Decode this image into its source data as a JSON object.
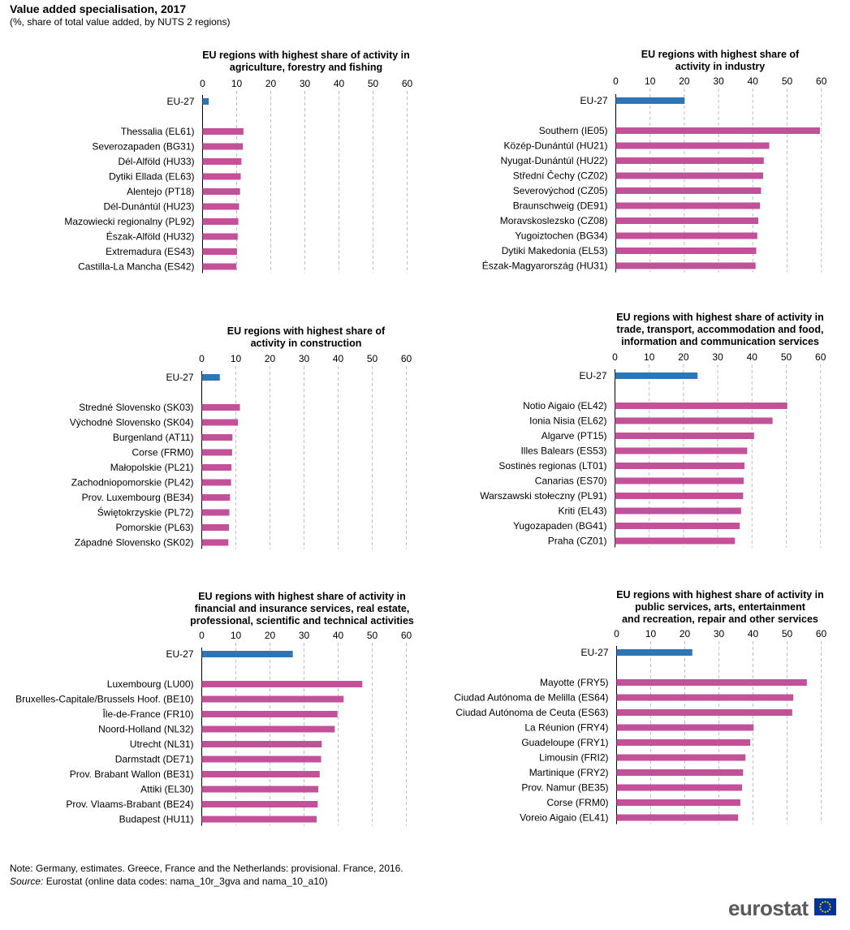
{
  "header": {
    "title": "Value added specialisation, 2017",
    "subtitle": "(%, share of total value  added,  by NUTS  2 regions)"
  },
  "footer": {
    "note": "Note: Germany, estimates. Greece, France and the Netherlands: provisional. France, 2016.",
    "source_label": "Source:",
    "source_text": " Eurostat (online data codes: nama_10r_3gva and nama_10_a10)",
    "logo_text": "eurostat"
  },
  "colors": {
    "eu_bar": "#2e75b6",
    "region_bar": "#c2519a",
    "grid": "#bfbfbf",
    "axis": "#000000",
    "flag_blue": "#003399",
    "flag_stars": "#ffcc00"
  },
  "chart_data": [
    {
      "type": "bar",
      "orientation": "horizontal",
      "title": [
        "EU regions with highest share of activity in",
        "agriculture, forestry  and fishing"
      ],
      "xlim": [
        0,
        60
      ],
      "ticks": [
        0,
        10,
        20,
        30,
        40,
        50,
        60
      ],
      "grid": true,
      "categories": [
        "EU-27",
        "Thessalia (EL61)",
        "Severozapaden (BG31)",
        "Dél-Alföld (HU33)",
        "Dytiki Ellada (EL63)",
        "Alentejo (PT18)",
        "Dél-Dunántúl (HU23)",
        "Mazowiecki regionalny (PL92)",
        "Észak-Alföld (HU32)",
        "Extremadura (ES43)",
        "Castilla-La Mancha (ES42)"
      ],
      "values": [
        1.8,
        12.0,
        11.8,
        11.4,
        11.2,
        11.0,
        10.7,
        10.5,
        10.3,
        10.1,
        9.9
      ]
    },
    {
      "type": "bar",
      "orientation": "horizontal",
      "title": [
        "EU regions with highest share of",
        "activity in industry"
      ],
      "xlim": [
        0,
        60
      ],
      "ticks": [
        0,
        10,
        20,
        30,
        40,
        50,
        60
      ],
      "grid": true,
      "categories": [
        "EU-27",
        "Southern (IE05)",
        "Közép-Dunántúl (HU21)",
        "Nyugat-Dunántúl (HU22)",
        "Střední Čechy (CZ02)",
        "Severovýchod (CZ05)",
        "Braunschweig (DE91)",
        "Moravskoslezsko (CZ08)",
        "Yugoiztochen (BG34)",
        "Dytiki Makedonia (EL53)",
        "Észak-Magyarország (HU31)"
      ],
      "values": [
        20.1,
        59.6,
        44.8,
        43.2,
        43.0,
        42.4,
        42.1,
        41.6,
        41.3,
        41.0,
        40.8
      ]
    },
    {
      "type": "bar",
      "orientation": "horizontal",
      "title": [
        "EU regions with highest share of",
        "activity in construction"
      ],
      "xlim": [
        0,
        60
      ],
      "ticks": [
        0,
        10,
        20,
        30,
        40,
        50,
        60
      ],
      "grid": true,
      "categories": [
        "EU-27",
        "Stredné Slovensko (SK03)",
        "Východné Slovensko (SK04)",
        "Burgenland (AT11)",
        "Corse (FRM0)",
        "Małopolskie (PL21)",
        "Zachodniopomorskie (PL42)",
        "Prov. Luxembourg (BE34)",
        "Świętokrzyskie (PL72)",
        "Pomorskie (PL63)",
        "Západné Slovensko (SK02)"
      ],
      "values": [
        5.3,
        11.2,
        10.6,
        9.0,
        8.9,
        8.7,
        8.6,
        8.3,
        8.1,
        8.0,
        7.8
      ]
    },
    {
      "type": "bar",
      "orientation": "horizontal",
      "title": [
        "EU regions with highest share of activity in",
        "trade, transport, accommodation and food,",
        "information and communication services"
      ],
      "xlim": [
        0,
        60
      ],
      "ticks": [
        0,
        10,
        20,
        30,
        40,
        50,
        60
      ],
      "grid": true,
      "categories": [
        "EU-27",
        "Notio Aigaio (EL42)",
        "Ionia Nisia (EL62)",
        "Algarve (PT15)",
        "Illes Balears (ES53)",
        "Sostinės regionas (LT01)",
        "Canarias (ES70)",
        "Warszawski stołeczny (PL91)",
        "Kriti (EL43)",
        "Yugozapaden (BG41)",
        "Praha (CZ01)"
      ],
      "values": [
        24.1,
        50.3,
        46.0,
        40.6,
        38.6,
        37.8,
        37.6,
        37.4,
        36.8,
        36.4,
        35.0
      ]
    },
    {
      "type": "bar",
      "orientation": "horizontal",
      "title": [
        "EU regions with highest share of activity in",
        "financial and insurance services,  real estate,",
        "professional,  scientific and technical activities"
      ],
      "xlim": [
        0,
        60
      ],
      "ticks": [
        0,
        10,
        20,
        30,
        40,
        50,
        60
      ],
      "grid": true,
      "categories": [
        "EU-27",
        "Luxembourg (LU00)",
        "Bruxelles-Capitale/Brussels Hoof. (BE10)",
        "Île-de-France (FR10)",
        "Noord-Holland (NL32)",
        "Utrecht (NL31)",
        "Darmstadt (DE71)",
        "Prov. Brabant Wallon (BE31)",
        "Attiki (EL30)",
        "Prov. Vlaams-Brabant (BE24)",
        "Budapest (HU11)"
      ],
      "values": [
        26.7,
        47.1,
        41.6,
        39.8,
        39.0,
        35.2,
        35.0,
        34.6,
        34.2,
        34.0,
        33.7
      ]
    },
    {
      "type": "bar",
      "orientation": "horizontal",
      "title": [
        "EU regions with highest share of activity in",
        "public services,  arts, entertainment",
        "and recreation, repair and other services"
      ],
      "xlim": [
        0,
        60
      ],
      "ticks": [
        0,
        10,
        20,
        30,
        40,
        50,
        60
      ],
      "grid": true,
      "categories": [
        "EU-27",
        "Mayotte (FRY5)",
        "Ciudad Autónoma de Melilla (ES64)",
        "Ciudad Autónoma de Ceuta (ES63)",
        "La Réunion (FRY4)",
        "Guadeloupe (FRY1)",
        "Limousin (FRI2)",
        "Martinique (FRY2)",
        "Prov. Namur (BE35)",
        "Corse (FRM0)",
        "Voreio Aigaio (EL41)"
      ],
      "values": [
        22.2,
        55.8,
        51.8,
        51.5,
        40.2,
        39.2,
        37.8,
        37.1,
        36.8,
        36.3,
        35.6
      ]
    }
  ]
}
